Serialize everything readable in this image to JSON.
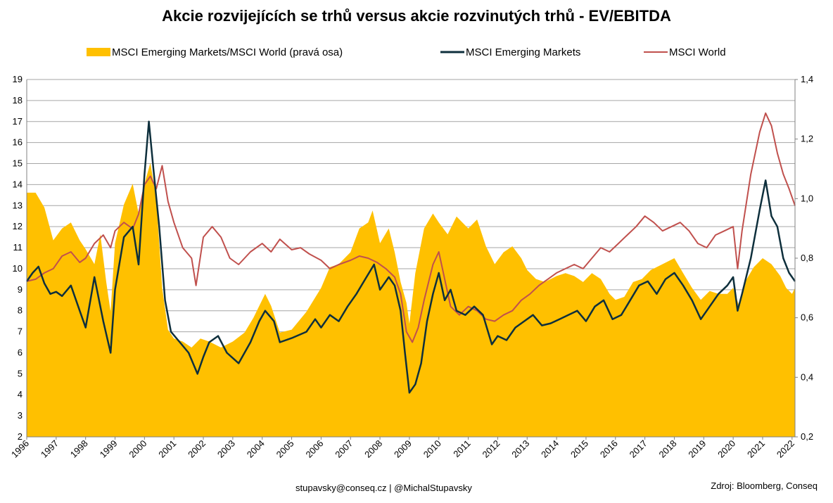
{
  "chart_data": {
    "type": "line",
    "title": "Akcie rozvijejících se trhů versus akcie rozvinutých trhů - EV/EBITDA",
    "x_ticks": [
      "1996",
      "1997",
      "1998",
      "1999",
      "2000",
      "2001",
      "2002",
      "2003",
      "2004",
      "2005",
      "2006",
      "2007",
      "2008",
      "2009",
      "2010",
      "2011",
      "2012",
      "2013",
      "2014",
      "2015",
      "2016",
      "2017",
      "2018",
      "2019",
      "2020",
      "2021",
      "2022"
    ],
    "ylim_left": [
      2,
      19
    ],
    "yticks_left": [
      "2",
      "3",
      "4",
      "5",
      "6",
      "7",
      "8",
      "9",
      "10",
      "11",
      "12",
      "13",
      "14",
      "15",
      "16",
      "17",
      "18",
      "19"
    ],
    "ylim_right": [
      0.2,
      1.4
    ],
    "yticks_right": [
      "0,2",
      "0,4",
      "0,6",
      "0,8",
      "1,0",
      "1,2",
      "1,4"
    ],
    "grid": true,
    "legend_position": "top",
    "series": [
      {
        "name": "MSCI Emerging Markets/MSCI World (pravá osa)",
        "kind": "area",
        "axis": "right",
        "color": "#FFC000",
        "points": [
          [
            1996.0,
            1.02
          ],
          [
            1996.3,
            1.02
          ],
          [
            1996.6,
            0.97
          ],
          [
            1996.9,
            0.86
          ],
          [
            1997.2,
            0.9
          ],
          [
            1997.5,
            0.92
          ],
          [
            1997.8,
            0.86
          ],
          [
            1998.0,
            0.83
          ],
          [
            1998.3,
            0.78
          ],
          [
            1998.5,
            0.88
          ],
          [
            1998.7,
            0.72
          ],
          [
            1998.85,
            0.62
          ],
          [
            1999.0,
            0.85
          ],
          [
            1999.3,
            0.98
          ],
          [
            1999.6,
            1.05
          ],
          [
            1999.8,
            0.95
          ],
          [
            2000.0,
            1.05
          ],
          [
            2000.2,
            1.12
          ],
          [
            2000.4,
            1.0
          ],
          [
            2000.6,
            0.7
          ],
          [
            2000.8,
            0.56
          ],
          [
            2001.0,
            0.53
          ],
          [
            2001.3,
            0.52
          ],
          [
            2001.6,
            0.5
          ],
          [
            2001.9,
            0.53
          ],
          [
            2002.2,
            0.52
          ],
          [
            2002.6,
            0.5
          ],
          [
            2003.0,
            0.52
          ],
          [
            2003.4,
            0.55
          ],
          [
            2003.7,
            0.6
          ],
          [
            2004.0,
            0.66
          ],
          [
            2004.1,
            0.68
          ],
          [
            2004.3,
            0.64
          ],
          [
            2004.6,
            0.55
          ],
          [
            2005.0,
            0.56
          ],
          [
            2005.5,
            0.62
          ],
          [
            2006.0,
            0.7
          ],
          [
            2006.3,
            0.77
          ],
          [
            2006.6,
            0.78
          ],
          [
            2007.0,
            0.82
          ],
          [
            2007.3,
            0.9
          ],
          [
            2007.6,
            0.92
          ],
          [
            2007.75,
            0.96
          ],
          [
            2008.0,
            0.85
          ],
          [
            2008.3,
            0.9
          ],
          [
            2008.5,
            0.82
          ],
          [
            2008.7,
            0.72
          ],
          [
            2008.9,
            0.65
          ],
          [
            2009.0,
            0.58
          ],
          [
            2009.2,
            0.75
          ],
          [
            2009.5,
            0.9
          ],
          [
            2009.8,
            0.95
          ],
          [
            2010.0,
            0.92
          ],
          [
            2010.3,
            0.88
          ],
          [
            2010.6,
            0.94
          ],
          [
            2010.8,
            0.92
          ],
          [
            2011.0,
            0.9
          ],
          [
            2011.3,
            0.93
          ],
          [
            2011.6,
            0.84
          ],
          [
            2011.9,
            0.78
          ],
          [
            2012.2,
            0.82
          ],
          [
            2012.5,
            0.84
          ],
          [
            2012.8,
            0.8
          ],
          [
            2013.0,
            0.76
          ],
          [
            2013.3,
            0.73
          ],
          [
            2013.6,
            0.72
          ],
          [
            2014.0,
            0.74
          ],
          [
            2014.3,
            0.75
          ],
          [
            2014.6,
            0.74
          ],
          [
            2014.9,
            0.72
          ],
          [
            2015.2,
            0.75
          ],
          [
            2015.5,
            0.73
          ],
          [
            2015.8,
            0.68
          ],
          [
            2016.0,
            0.66
          ],
          [
            2016.3,
            0.67
          ],
          [
            2016.6,
            0.72
          ],
          [
            2016.9,
            0.73
          ],
          [
            2017.2,
            0.76
          ],
          [
            2017.6,
            0.78
          ],
          [
            2018.0,
            0.8
          ],
          [
            2018.3,
            0.75
          ],
          [
            2018.6,
            0.7
          ],
          [
            2018.9,
            0.66
          ],
          [
            2019.2,
            0.69
          ],
          [
            2019.5,
            0.68
          ],
          [
            2019.8,
            0.68
          ],
          [
            2020.0,
            0.7
          ],
          [
            2020.2,
            0.64
          ],
          [
            2020.4,
            0.72
          ],
          [
            2020.7,
            0.77
          ],
          [
            2021.0,
            0.8
          ],
          [
            2021.3,
            0.78
          ],
          [
            2021.6,
            0.74
          ],
          [
            2021.8,
            0.7
          ],
          [
            2022.0,
            0.68
          ],
          [
            2022.1,
            0.7
          ]
        ]
      },
      {
        "name": "MSCI Emerging Markets",
        "kind": "line",
        "axis": "left",
        "color": "#0E2F3C",
        "points": [
          [
            1996.0,
            9.4
          ],
          [
            1996.2,
            9.8
          ],
          [
            1996.4,
            10.1
          ],
          [
            1996.6,
            9.3
          ],
          [
            1996.8,
            8.8
          ],
          [
            1997.0,
            8.9
          ],
          [
            1997.2,
            8.7
          ],
          [
            1997.5,
            9.2
          ],
          [
            1997.8,
            8.0
          ],
          [
            1998.0,
            7.2
          ],
          [
            1998.3,
            9.6
          ],
          [
            1998.6,
            7.5
          ],
          [
            1998.85,
            6.0
          ],
          [
            1999.0,
            9.0
          ],
          [
            1999.3,
            11.5
          ],
          [
            1999.6,
            12.0
          ],
          [
            1999.8,
            10.2
          ],
          [
            2000.0,
            14.5
          ],
          [
            2000.15,
            17.0
          ],
          [
            2000.3,
            14.8
          ],
          [
            2000.5,
            12.0
          ],
          [
            2000.7,
            8.5
          ],
          [
            2000.9,
            7.0
          ],
          [
            2001.2,
            6.5
          ],
          [
            2001.5,
            6.0
          ],
          [
            2001.8,
            5.0
          ],
          [
            2002.0,
            5.8
          ],
          [
            2002.2,
            6.5
          ],
          [
            2002.5,
            6.8
          ],
          [
            2002.8,
            6.0
          ],
          [
            2003.2,
            5.5
          ],
          [
            2003.6,
            6.5
          ],
          [
            2003.9,
            7.5
          ],
          [
            2004.1,
            8.0
          ],
          [
            2004.4,
            7.5
          ],
          [
            2004.6,
            6.5
          ],
          [
            2005.0,
            6.7
          ],
          [
            2005.5,
            7.0
          ],
          [
            2005.8,
            7.6
          ],
          [
            2006.0,
            7.2
          ],
          [
            2006.3,
            7.8
          ],
          [
            2006.6,
            7.5
          ],
          [
            2006.9,
            8.2
          ],
          [
            2007.2,
            8.8
          ],
          [
            2007.5,
            9.5
          ],
          [
            2007.8,
            10.2
          ],
          [
            2008.0,
            9.0
          ],
          [
            2008.3,
            9.6
          ],
          [
            2008.5,
            9.2
          ],
          [
            2008.7,
            8.0
          ],
          [
            2008.85,
            6.0
          ],
          [
            2009.0,
            4.1
          ],
          [
            2009.2,
            4.5
          ],
          [
            2009.4,
            5.5
          ],
          [
            2009.6,
            7.5
          ],
          [
            2009.8,
            8.8
          ],
          [
            2010.0,
            9.8
          ],
          [
            2010.2,
            8.5
          ],
          [
            2010.4,
            9.0
          ],
          [
            2010.6,
            8.0
          ],
          [
            2010.9,
            7.8
          ],
          [
            2011.2,
            8.2
          ],
          [
            2011.5,
            7.8
          ],
          [
            2011.8,
            6.4
          ],
          [
            2012.0,
            6.8
          ],
          [
            2012.3,
            6.6
          ],
          [
            2012.6,
            7.2
          ],
          [
            2012.9,
            7.5
          ],
          [
            2013.2,
            7.8
          ],
          [
            2013.5,
            7.3
          ],
          [
            2013.8,
            7.4
          ],
          [
            2014.1,
            7.6
          ],
          [
            2014.4,
            7.8
          ],
          [
            2014.7,
            8.0
          ],
          [
            2015.0,
            7.5
          ],
          [
            2015.3,
            8.2
          ],
          [
            2015.6,
            8.5
          ],
          [
            2015.9,
            7.6
          ],
          [
            2016.2,
            7.8
          ],
          [
            2016.5,
            8.5
          ],
          [
            2016.8,
            9.2
          ],
          [
            2017.1,
            9.4
          ],
          [
            2017.4,
            8.8
          ],
          [
            2017.7,
            9.5
          ],
          [
            2018.0,
            9.8
          ],
          [
            2018.3,
            9.2
          ],
          [
            2018.6,
            8.5
          ],
          [
            2018.9,
            7.6
          ],
          [
            2019.2,
            8.2
          ],
          [
            2019.5,
            8.8
          ],
          [
            2019.8,
            9.2
          ],
          [
            2020.0,
            9.6
          ],
          [
            2020.15,
            8.0
          ],
          [
            2020.3,
            8.8
          ],
          [
            2020.6,
            10.5
          ],
          [
            2020.9,
            12.8
          ],
          [
            2021.1,
            14.2
          ],
          [
            2021.3,
            12.5
          ],
          [
            2021.5,
            12.0
          ],
          [
            2021.7,
            10.5
          ],
          [
            2021.9,
            9.8
          ],
          [
            2022.1,
            9.4
          ]
        ]
      },
      {
        "name": "MSCI World",
        "kind": "line",
        "axis": "left",
        "color": "#C0504D",
        "points": [
          [
            1996.0,
            9.4
          ],
          [
            1996.3,
            9.5
          ],
          [
            1996.6,
            9.8
          ],
          [
            1996.9,
            10.0
          ],
          [
            1997.2,
            10.6
          ],
          [
            1997.5,
            10.8
          ],
          [
            1997.8,
            10.3
          ],
          [
            1998.0,
            10.5
          ],
          [
            1998.3,
            11.2
          ],
          [
            1998.6,
            11.6
          ],
          [
            1998.85,
            11.0
          ],
          [
            1999.0,
            11.8
          ],
          [
            1999.3,
            12.2
          ],
          [
            1999.6,
            11.9
          ],
          [
            1999.8,
            12.6
          ],
          [
            2000.0,
            14.0
          ],
          [
            2000.2,
            14.4
          ],
          [
            2000.4,
            13.8
          ],
          [
            2000.6,
            14.9
          ],
          [
            2000.8,
            13.2
          ],
          [
            2001.0,
            12.2
          ],
          [
            2001.3,
            11.0
          ],
          [
            2001.6,
            10.5
          ],
          [
            2001.75,
            9.2
          ],
          [
            2002.0,
            11.5
          ],
          [
            2002.3,
            12.0
          ],
          [
            2002.6,
            11.5
          ],
          [
            2002.9,
            10.5
          ],
          [
            2003.2,
            10.2
          ],
          [
            2003.6,
            10.8
          ],
          [
            2004.0,
            11.2
          ],
          [
            2004.3,
            10.8
          ],
          [
            2004.6,
            11.4
          ],
          [
            2005.0,
            10.9
          ],
          [
            2005.3,
            11.0
          ],
          [
            2005.6,
            10.7
          ],
          [
            2006.0,
            10.4
          ],
          [
            2006.3,
            10.0
          ],
          [
            2006.6,
            10.2
          ],
          [
            2007.0,
            10.4
          ],
          [
            2007.3,
            10.6
          ],
          [
            2007.6,
            10.5
          ],
          [
            2007.9,
            10.3
          ],
          [
            2008.2,
            10.0
          ],
          [
            2008.5,
            9.6
          ],
          [
            2008.7,
            8.8
          ],
          [
            2008.9,
            7.0
          ],
          [
            2009.1,
            6.5
          ],
          [
            2009.3,
            7.2
          ],
          [
            2009.5,
            8.5
          ],
          [
            2009.8,
            10.2
          ],
          [
            2010.0,
            10.8
          ],
          [
            2010.2,
            9.5
          ],
          [
            2010.4,
            8.2
          ],
          [
            2010.7,
            7.8
          ],
          [
            2011.0,
            8.2
          ],
          [
            2011.3,
            8.0
          ],
          [
            2011.6,
            7.6
          ],
          [
            2011.9,
            7.5
          ],
          [
            2012.2,
            7.8
          ],
          [
            2012.5,
            8.0
          ],
          [
            2012.8,
            8.5
          ],
          [
            2013.1,
            8.8
          ],
          [
            2013.4,
            9.2
          ],
          [
            2013.7,
            9.5
          ],
          [
            2014.0,
            9.8
          ],
          [
            2014.3,
            10.0
          ],
          [
            2014.6,
            10.2
          ],
          [
            2014.9,
            10.0
          ],
          [
            2015.2,
            10.5
          ],
          [
            2015.5,
            11.0
          ],
          [
            2015.8,
            10.8
          ],
          [
            2016.1,
            11.2
          ],
          [
            2016.4,
            11.6
          ],
          [
            2016.7,
            12.0
          ],
          [
            2017.0,
            12.5
          ],
          [
            2017.3,
            12.2
          ],
          [
            2017.6,
            11.8
          ],
          [
            2017.9,
            12.0
          ],
          [
            2018.2,
            12.2
          ],
          [
            2018.5,
            11.8
          ],
          [
            2018.8,
            11.2
          ],
          [
            2019.1,
            11.0
          ],
          [
            2019.4,
            11.6
          ],
          [
            2019.7,
            11.8
          ],
          [
            2020.0,
            12.0
          ],
          [
            2020.15,
            10.0
          ],
          [
            2020.3,
            11.8
          ],
          [
            2020.6,
            14.5
          ],
          [
            2020.9,
            16.5
          ],
          [
            2021.1,
            17.4
          ],
          [
            2021.3,
            16.8
          ],
          [
            2021.5,
            15.5
          ],
          [
            2021.7,
            14.5
          ],
          [
            2021.9,
            13.8
          ],
          [
            2022.1,
            13.0
          ]
        ]
      }
    ]
  },
  "footer": {
    "contact": "stupavsky@conseq.cz  |  @MichalStupavsky",
    "source": "Zdroj: Bloomberg, Conseq"
  }
}
